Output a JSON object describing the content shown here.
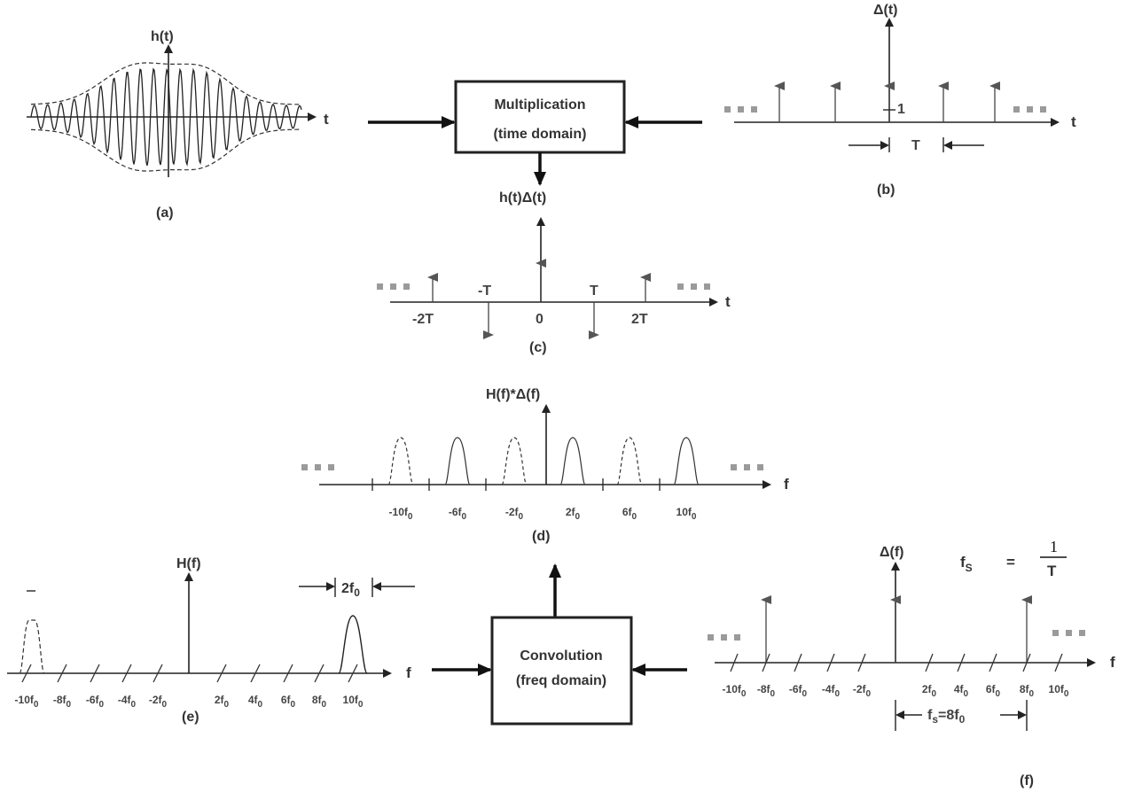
{
  "labels": {
    "a": "(a)",
    "b": "(b)",
    "c": "(c)",
    "d": "(d)",
    "e": "(e)",
    "f": "f",
    "h_t": "h(t)",
    "delta_t": "Δ(t)",
    "h_delta_t": "h(t)Δ(t)",
    "H_conv": "H(f)*Δ(f)",
    "H_f": "H(f)",
    "delta_f": "Δ(f)",
    "t": "t",
    "T": "T",
    "one": "1",
    "fs_eq": "f",
    "fs_sub": "S",
    "fs_num": "1",
    "fs_den": "T",
    "eq": "=",
    "two_f0": "2f",
    "fs_8f0": "f",
    "fs_8f0_rest": "=8f"
  },
  "boxes": {
    "multiplication_line1": "Multiplication",
    "multiplication_line2": "(time domain)",
    "convolution_line1": "Convolution",
    "convolution_line2": "(freq domain)"
  },
  "panel_c_ticks": [
    "-2T",
    "-T",
    "0",
    "T",
    "2T"
  ],
  "freq_ticks": [
    "-10f",
    "-8f",
    "-6f",
    "-4f",
    "-2f",
    "2f",
    "4f",
    "6f",
    "8f",
    "10f"
  ],
  "panel_d_ticks": [
    "-10f",
    "-6f",
    "-2f",
    "2f",
    "6f",
    "10f"
  ],
  "subscript_zero": "0",
  "subscript_s": "s"
}
